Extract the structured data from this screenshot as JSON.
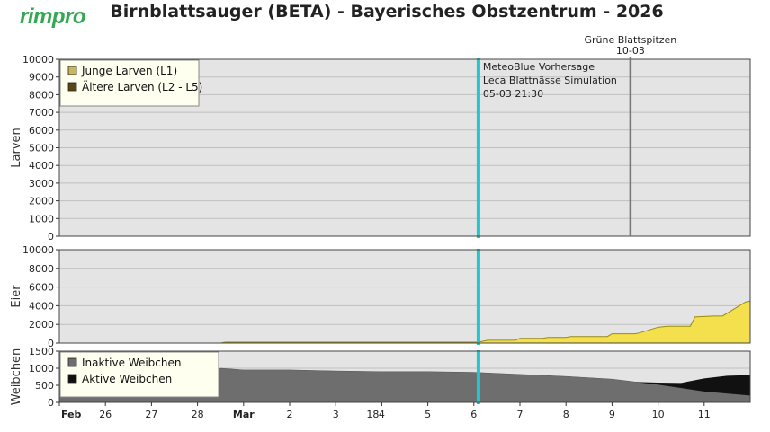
{
  "app": {
    "logo": "rimpro",
    "title": "Birnblattsauger (BETA) - Bayerisches Obstzentrum - 2026"
  },
  "colors": {
    "panel_bg": "#e4e4e4",
    "grid": "#bfbfbf",
    "forecast_line": "#1fc7cf",
    "event_line": "#777777",
    "eggs_fill": "#f4e04d",
    "eggs_line": "#9a8a10",
    "inactive_fill": "#6e6e6e",
    "active_fill": "#111111",
    "legend_bg": "#fffff0"
  },
  "chart_data": [
    {
      "type": "area",
      "panel": "larvae",
      "ylabel": "Larven",
      "ylim": [
        0,
        10000
      ],
      "yticks": [
        0,
        1000,
        2000,
        3000,
        4000,
        5000,
        6000,
        7000,
        8000,
        9000,
        10000
      ],
      "legend": {
        "placement": "top-left",
        "entries": [
          {
            "label": "Junge Larven (L1)",
            "color": "#c9b760"
          },
          {
            "label": "Ältere Larven (L2 - L5)",
            "color": "#5b4712"
          }
        ]
      },
      "series": [
        {
          "name": "Junge Larven (L1)",
          "x": [
            0,
            15
          ],
          "y": [
            0,
            0
          ]
        },
        {
          "name": "Ältere Larven (L2 - L5)",
          "x": [
            0,
            15
          ],
          "y": [
            0,
            0
          ]
        }
      ],
      "annotations": {
        "forecast_lines": [
          "MeteoBlue Vorhersage",
          "Leca Blattnässe Simulation",
          "05-03 21:30"
        ],
        "event_label": "Grüne Blattspitzen",
        "event_date": "10-03"
      }
    },
    {
      "type": "area",
      "panel": "eggs",
      "ylabel": "Eier",
      "ylim": [
        0,
        10000
      ],
      "yticks": [
        0,
        2000,
        4000,
        6000,
        8000,
        10000
      ],
      "series": [
        {
          "name": "Eier",
          "x": [
            0,
            3.5,
            3.6,
            9.1,
            9.3,
            9.9,
            10.0,
            10.5,
            10.6,
            11.0,
            11.1,
            11.9,
            12.0,
            12.5,
            12.6,
            13.0,
            13.2,
            13.7,
            13.8,
            14.2,
            14.4,
            14.9,
            15.0
          ],
          "y": [
            0,
            0,
            100,
            100,
            300,
            300,
            500,
            500,
            600,
            600,
            700,
            700,
            1000,
            1000,
            1100,
            1700,
            1800,
            1800,
            2800,
            2900,
            2900,
            4400,
            4500
          ]
        }
      ]
    },
    {
      "type": "area",
      "panel": "females",
      "ylabel": "Weibchen",
      "ylim": [
        0,
        1500
      ],
      "yticks": [
        0,
        500,
        1000,
        1500
      ],
      "legend": {
        "placement": "top-left",
        "entries": [
          {
            "label": "Inaktive Weibchen",
            "color": "#6e6e6e"
          },
          {
            "label": "Aktive Weibchen",
            "color": "#111111"
          }
        ]
      },
      "series": [
        {
          "name": "Inaktive Weibchen",
          "x": [
            0,
            2.0,
            3.5,
            4.0,
            5.0,
            6.0,
            7.0,
            8.0,
            9.0,
            10.0,
            11.0,
            12.0,
            12.5,
            13.0,
            13.5,
            14.0,
            15.0
          ],
          "y": [
            200,
            200,
            1000,
            950,
            950,
            920,
            900,
            900,
            880,
            820,
            760,
            680,
            600,
            520,
            420,
            320,
            200
          ]
        },
        {
          "name": "Aktive Weibchen",
          "x": [
            0,
            12.5,
            13.0,
            13.5,
            14.0,
            14.5,
            15.0
          ],
          "y": [
            0,
            0,
            60,
            150,
            380,
            520,
            600
          ]
        }
      ],
      "x_labels": [
        "Feb",
        "26",
        "27",
        "28",
        "Mar",
        "2",
        "3",
        "4",
        "5",
        "6",
        "7",
        "8",
        "9",
        "10",
        "11"
      ],
      "extra_tick": "18"
    }
  ]
}
